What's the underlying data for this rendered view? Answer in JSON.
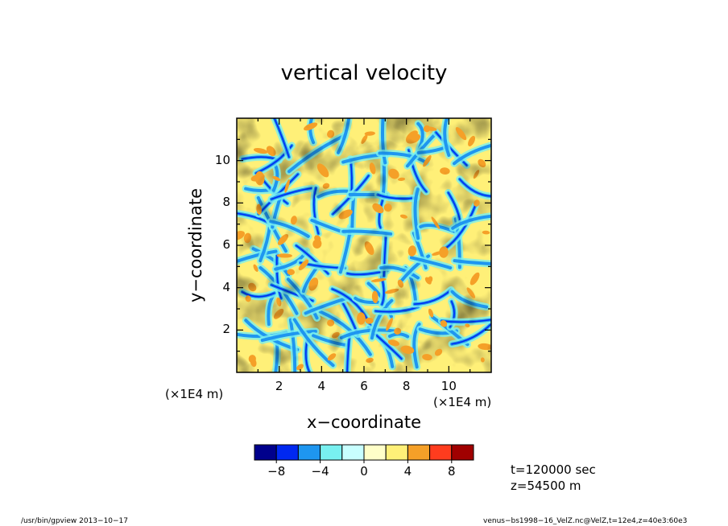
{
  "chart_data": {
    "type": "heatmap",
    "title": "vertical velocity",
    "xlabel": "x−coordinate",
    "ylabel": "y−coordinate",
    "x_scale_label": "(×1E4 m)",
    "y_scale_label": "(×1E4 m)",
    "xlim": [
      0,
      12
    ],
    "ylim": [
      0,
      12
    ],
    "x_ticks": [
      2,
      4,
      6,
      8,
      10
    ],
    "y_ticks": [
      2,
      4,
      6,
      8,
      10
    ],
    "colorbar": {
      "levels": [
        -10,
        -8,
        -6,
        -4,
        -2,
        0,
        2,
        4,
        6,
        8,
        10
      ],
      "tick_values": [
        -8,
        -4,
        0,
        4,
        8
      ],
      "tick_labels": [
        "−8",
        "−4",
        "0",
        "4",
        "8"
      ],
      "colors": [
        "#00008c",
        "#0028f0",
        "#1e96f0",
        "#78f0f0",
        "#c8ffff",
        "#ffffc8",
        "#fff078",
        "#f5a028",
        "#ff3c1e",
        "#a00000"
      ]
    },
    "annotations": [
      "t=120000 sec",
      "z=54500 m"
    ],
    "grid": false
  },
  "footer": {
    "left": "/usr/bin/gpview   2013−10−17",
    "right": "venus−bs1998−16_VelZ.nc@VelZ,t=12e4,z=40e3:60e3"
  }
}
